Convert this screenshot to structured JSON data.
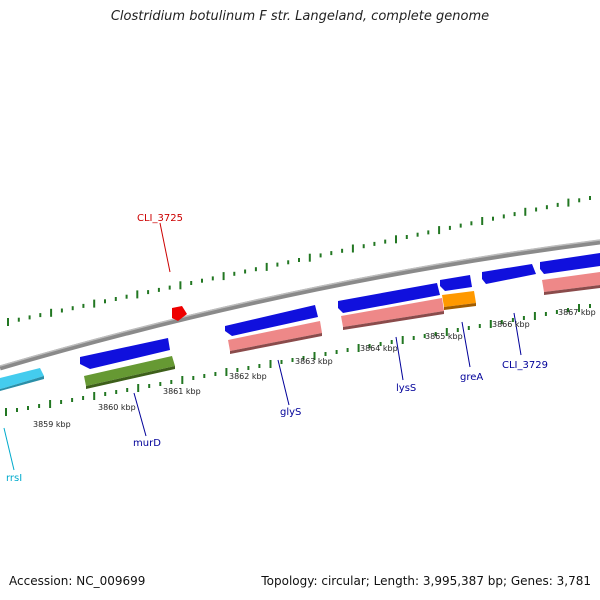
{
  "title": "Clostridium botulinum F str. Langeland, complete genome",
  "footer": {
    "accession": "Accession: NC_009699",
    "stats": "Topology: circular; Length: 3,995,387 bp; Genes: 3,781"
  },
  "tick_labels": [
    "3859 kbp",
    "3860 kbp",
    "3861 kbp",
    "3862 kbp",
    "3863 kbp",
    "3864 kbp",
    "3865 kbp",
    "3866 kbp",
    "3867 kbp"
  ],
  "gene_labels": [
    {
      "text": "CLI_3725",
      "color": "#cc0000"
    },
    {
      "text": "murD",
      "color": "#000099"
    },
    {
      "text": "glyS",
      "color": "#000099"
    },
    {
      "text": "lysS",
      "color": "#000099"
    },
    {
      "text": "greA",
      "color": "#000099"
    },
    {
      "text": "CLI_3729",
      "color": "#000099"
    },
    {
      "text": "rrsI",
      "color": "#00aacc"
    }
  ],
  "colors": {
    "cds": "#1010dd",
    "trna_rrna_box": "#ee8888",
    "rrna": "#44ccee",
    "dna_strand": "#888888",
    "tick": "#227722",
    "highlight_gene": "#ee0000",
    "orange_gene": "#ff9900",
    "green_gene": "#669933"
  }
}
